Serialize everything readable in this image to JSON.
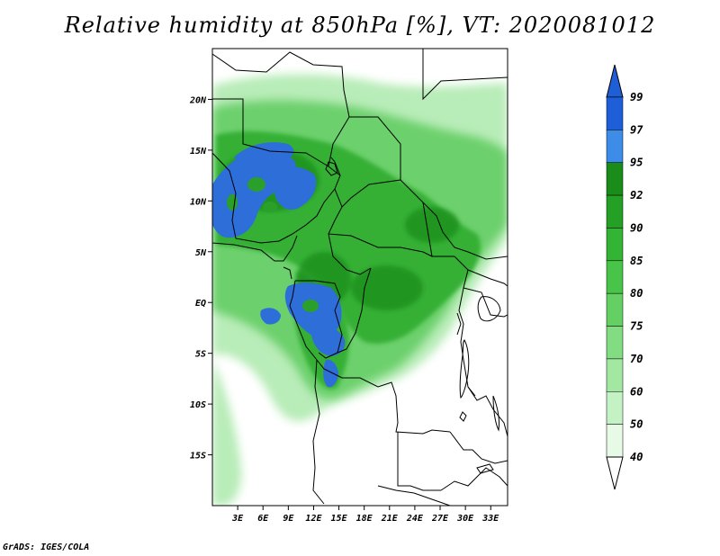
{
  "title": "Relative humidity at 850hPa [%], VT: 2020081012",
  "credit": "GrADS: IGES/COLA",
  "map": {
    "lat_range": [
      -20,
      25
    ],
    "lon_range": [
      0,
      35
    ],
    "y_ticks": [
      "20N",
      "15N",
      "10N",
      "5N",
      "EQ",
      "5S",
      "10S",
      "15S"
    ],
    "y_tick_values": [
      20,
      15,
      10,
      5,
      0,
      -5,
      -10,
      -15
    ],
    "x_ticks": [
      "3E",
      "6E",
      "9E",
      "12E",
      "15E",
      "18E",
      "21E",
      "24E",
      "27E",
      "30E",
      "33E"
    ],
    "x_tick_values": [
      3,
      6,
      9,
      12,
      15,
      18,
      21,
      24,
      27,
      30,
      33
    ]
  },
  "colorbar": {
    "labels": [
      "99",
      "97",
      "95",
      "92",
      "90",
      "85",
      "80",
      "75",
      "70",
      "60",
      "50",
      "40"
    ],
    "colors": [
      "#1e5fd8",
      "#3c8ce8",
      "#1a8c1a",
      "#24a024",
      "#34b434",
      "#48c448",
      "#64d064",
      "#82dc82",
      "#a2e8a2",
      "#c4f2c4",
      "#e6fae6",
      "#ffffff"
    ],
    "top_color": "#1e5fd8",
    "bottom_color": "#ffffff"
  },
  "palette": {
    "border": "#000000",
    "land_base": "#ffffff",
    "green_light": "#a8e8a8",
    "green_mid": "#5cc85c",
    "green_dark": "#2aa02a",
    "blue": "#2e6ed8"
  }
}
